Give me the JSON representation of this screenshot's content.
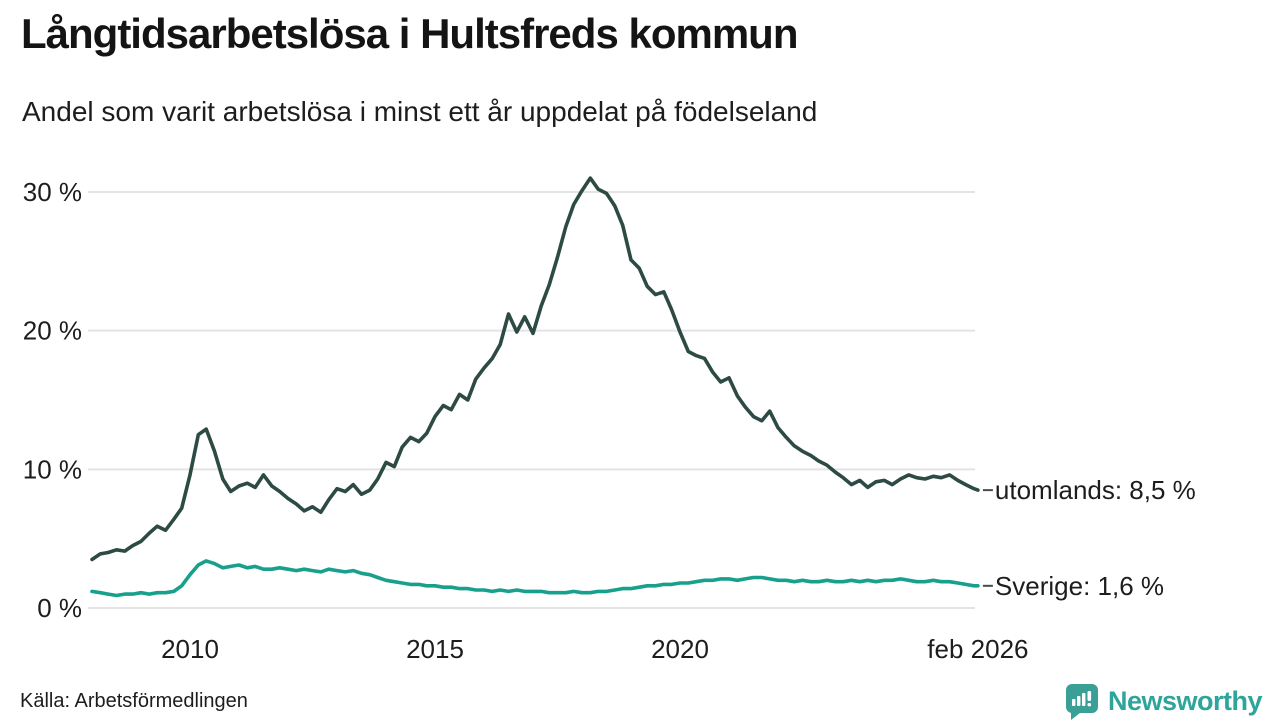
{
  "header": {
    "title": "Långtidsarbetslösa i Hultsfreds kommun",
    "subtitle": "Andel som varit arbetslösa i minst ett år uppdelat på födelseland"
  },
  "footer": {
    "source": "Källa: Arbetsförmedlingen",
    "brand": "Newsworthy",
    "brand_icon": "newsworthy-speech-bubble-bar-chart-icon",
    "brand_color": "#2ea59b"
  },
  "chart_data": {
    "type": "line",
    "title": "Långtidsarbetslösa i Hultsfreds kommun",
    "subtitle": "Andel som varit arbetslösa i minst ett år uppdelat på födelseland",
    "xlabel": "",
    "ylabel": "",
    "grid": "horizontal",
    "legend_position": "right-of-line-ends",
    "style": {
      "grid_color": "#e4e4e4",
      "axis_text_color": "#1d1d1d",
      "leader_dash_color": "#4a4a4a",
      "background": "#ffffff"
    },
    "x_axis": {
      "range": [
        2008.0,
        2026.17
      ],
      "ticks": [
        {
          "value": 2010,
          "label": "2010"
        },
        {
          "value": 2015,
          "label": "2015"
        },
        {
          "value": 2020,
          "label": "2020"
        },
        {
          "value": 2026.08,
          "label": "feb 2026"
        }
      ]
    },
    "y_axis": {
      "range": [
        0,
        32
      ],
      "unit": "%",
      "ticks": [
        {
          "value": 0,
          "label": "0 %"
        },
        {
          "value": 10,
          "label": "10 %"
        },
        {
          "value": 20,
          "label": "20 %"
        },
        {
          "value": 30,
          "label": "30 %"
        }
      ]
    },
    "series": [
      {
        "name": "utomlands",
        "color": "#2d4b44",
        "end_label": "utomlands: 8,5 %",
        "last_value_label": "8,5 %",
        "points": [
          [
            2008.0,
            3.5
          ],
          [
            2008.17,
            3.9
          ],
          [
            2008.33,
            4.0
          ],
          [
            2008.5,
            4.2
          ],
          [
            2008.67,
            4.1
          ],
          [
            2008.83,
            4.5
          ],
          [
            2009.0,
            4.8
          ],
          [
            2009.17,
            5.4
          ],
          [
            2009.33,
            5.9
          ],
          [
            2009.5,
            5.6
          ],
          [
            2009.67,
            6.4
          ],
          [
            2009.83,
            7.2
          ],
          [
            2010.0,
            9.6
          ],
          [
            2010.17,
            12.5
          ],
          [
            2010.33,
            12.9
          ],
          [
            2010.5,
            11.3
          ],
          [
            2010.67,
            9.3
          ],
          [
            2010.83,
            8.4
          ],
          [
            2011.0,
            8.8
          ],
          [
            2011.17,
            9.0
          ],
          [
            2011.33,
            8.7
          ],
          [
            2011.5,
            9.6
          ],
          [
            2011.67,
            8.8
          ],
          [
            2011.83,
            8.4
          ],
          [
            2012.0,
            7.9
          ],
          [
            2012.17,
            7.5
          ],
          [
            2012.33,
            7.0
          ],
          [
            2012.5,
            7.3
          ],
          [
            2012.67,
            6.9
          ],
          [
            2012.83,
            7.8
          ],
          [
            2013.0,
            8.6
          ],
          [
            2013.17,
            8.4
          ],
          [
            2013.33,
            8.9
          ],
          [
            2013.5,
            8.2
          ],
          [
            2013.67,
            8.5
          ],
          [
            2013.83,
            9.3
          ],
          [
            2014.0,
            10.5
          ],
          [
            2014.17,
            10.2
          ],
          [
            2014.33,
            11.6
          ],
          [
            2014.5,
            12.3
          ],
          [
            2014.67,
            12.0
          ],
          [
            2014.83,
            12.6
          ],
          [
            2015.0,
            13.8
          ],
          [
            2015.17,
            14.6
          ],
          [
            2015.33,
            14.3
          ],
          [
            2015.5,
            15.4
          ],
          [
            2015.67,
            15.0
          ],
          [
            2015.83,
            16.5
          ],
          [
            2016.0,
            17.3
          ],
          [
            2016.17,
            18.0
          ],
          [
            2016.33,
            19.0
          ],
          [
            2016.5,
            21.2
          ],
          [
            2016.67,
            19.9
          ],
          [
            2016.83,
            21.0
          ],
          [
            2017.0,
            19.8
          ],
          [
            2017.17,
            21.8
          ],
          [
            2017.33,
            23.3
          ],
          [
            2017.5,
            25.3
          ],
          [
            2017.67,
            27.5
          ],
          [
            2017.83,
            29.1
          ],
          [
            2018.0,
            30.1
          ],
          [
            2018.17,
            31.0
          ],
          [
            2018.33,
            30.2
          ],
          [
            2018.5,
            29.9
          ],
          [
            2018.67,
            29.0
          ],
          [
            2018.83,
            27.6
          ],
          [
            2019.0,
            25.1
          ],
          [
            2019.17,
            24.5
          ],
          [
            2019.33,
            23.2
          ],
          [
            2019.5,
            22.6
          ],
          [
            2019.67,
            22.8
          ],
          [
            2019.83,
            21.5
          ],
          [
            2020.0,
            19.9
          ],
          [
            2020.17,
            18.5
          ],
          [
            2020.33,
            18.2
          ],
          [
            2020.5,
            18.0
          ],
          [
            2020.67,
            17.0
          ],
          [
            2020.83,
            16.3
          ],
          [
            2021.0,
            16.6
          ],
          [
            2021.17,
            15.3
          ],
          [
            2021.33,
            14.5
          ],
          [
            2021.5,
            13.8
          ],
          [
            2021.67,
            13.5
          ],
          [
            2021.83,
            14.2
          ],
          [
            2022.0,
            13.0
          ],
          [
            2022.17,
            12.3
          ],
          [
            2022.33,
            11.7
          ],
          [
            2022.5,
            11.3
          ],
          [
            2022.67,
            11.0
          ],
          [
            2022.83,
            10.6
          ],
          [
            2023.0,
            10.3
          ],
          [
            2023.17,
            9.8
          ],
          [
            2023.33,
            9.4
          ],
          [
            2023.5,
            8.9
          ],
          [
            2023.67,
            9.2
          ],
          [
            2023.83,
            8.7
          ],
          [
            2024.0,
            9.1
          ],
          [
            2024.17,
            9.2
          ],
          [
            2024.33,
            8.9
          ],
          [
            2024.5,
            9.3
          ],
          [
            2024.67,
            9.6
          ],
          [
            2024.83,
            9.4
          ],
          [
            2025.0,
            9.3
          ],
          [
            2025.17,
            9.5
          ],
          [
            2025.33,
            9.4
          ],
          [
            2025.5,
            9.6
          ],
          [
            2025.67,
            9.2
          ],
          [
            2025.83,
            8.9
          ],
          [
            2026.0,
            8.6
          ],
          [
            2026.08,
            8.5
          ]
        ]
      },
      {
        "name": "Sverige",
        "color": "#18a08d",
        "end_label": "Sverige: 1,6 %",
        "last_value_label": "1,6 %",
        "points": [
          [
            2008.0,
            1.2
          ],
          [
            2008.17,
            1.1
          ],
          [
            2008.33,
            1.0
          ],
          [
            2008.5,
            0.9
          ],
          [
            2008.67,
            1.0
          ],
          [
            2008.83,
            1.0
          ],
          [
            2009.0,
            1.1
          ],
          [
            2009.17,
            1.0
          ],
          [
            2009.33,
            1.1
          ],
          [
            2009.5,
            1.1
          ],
          [
            2009.67,
            1.2
          ],
          [
            2009.83,
            1.6
          ],
          [
            2010.0,
            2.4
          ],
          [
            2010.17,
            3.1
          ],
          [
            2010.33,
            3.4
          ],
          [
            2010.5,
            3.2
          ],
          [
            2010.67,
            2.9
          ],
          [
            2010.83,
            3.0
          ],
          [
            2011.0,
            3.1
          ],
          [
            2011.17,
            2.9
          ],
          [
            2011.33,
            3.0
          ],
          [
            2011.5,
            2.8
          ],
          [
            2011.67,
            2.8
          ],
          [
            2011.83,
            2.9
          ],
          [
            2012.0,
            2.8
          ],
          [
            2012.17,
            2.7
          ],
          [
            2012.33,
            2.8
          ],
          [
            2012.5,
            2.7
          ],
          [
            2012.67,
            2.6
          ],
          [
            2012.83,
            2.8
          ],
          [
            2013.0,
            2.7
          ],
          [
            2013.17,
            2.6
          ],
          [
            2013.33,
            2.7
          ],
          [
            2013.5,
            2.5
          ],
          [
            2013.67,
            2.4
          ],
          [
            2013.83,
            2.2
          ],
          [
            2014.0,
            2.0
          ],
          [
            2014.17,
            1.9
          ],
          [
            2014.33,
            1.8
          ],
          [
            2014.5,
            1.7
          ],
          [
            2014.67,
            1.7
          ],
          [
            2014.83,
            1.6
          ],
          [
            2015.0,
            1.6
          ],
          [
            2015.17,
            1.5
          ],
          [
            2015.33,
            1.5
          ],
          [
            2015.5,
            1.4
          ],
          [
            2015.67,
            1.4
          ],
          [
            2015.83,
            1.3
          ],
          [
            2016.0,
            1.3
          ],
          [
            2016.17,
            1.2
          ],
          [
            2016.33,
            1.3
          ],
          [
            2016.5,
            1.2
          ],
          [
            2016.67,
            1.3
          ],
          [
            2016.83,
            1.2
          ],
          [
            2017.0,
            1.2
          ],
          [
            2017.17,
            1.2
          ],
          [
            2017.33,
            1.1
          ],
          [
            2017.5,
            1.1
          ],
          [
            2017.67,
            1.1
          ],
          [
            2017.83,
            1.2
          ],
          [
            2018.0,
            1.1
          ],
          [
            2018.17,
            1.1
          ],
          [
            2018.33,
            1.2
          ],
          [
            2018.5,
            1.2
          ],
          [
            2018.67,
            1.3
          ],
          [
            2018.83,
            1.4
          ],
          [
            2019.0,
            1.4
          ],
          [
            2019.17,
            1.5
          ],
          [
            2019.33,
            1.6
          ],
          [
            2019.5,
            1.6
          ],
          [
            2019.67,
            1.7
          ],
          [
            2019.83,
            1.7
          ],
          [
            2020.0,
            1.8
          ],
          [
            2020.17,
            1.8
          ],
          [
            2020.33,
            1.9
          ],
          [
            2020.5,
            2.0
          ],
          [
            2020.67,
            2.0
          ],
          [
            2020.83,
            2.1
          ],
          [
            2021.0,
            2.1
          ],
          [
            2021.17,
            2.0
          ],
          [
            2021.33,
            2.1
          ],
          [
            2021.5,
            2.2
          ],
          [
            2021.67,
            2.2
          ],
          [
            2021.83,
            2.1
          ],
          [
            2022.0,
            2.0
          ],
          [
            2022.17,
            2.0
          ],
          [
            2022.33,
            1.9
          ],
          [
            2022.5,
            2.0
          ],
          [
            2022.67,
            1.9
          ],
          [
            2022.83,
            1.9
          ],
          [
            2023.0,
            2.0
          ],
          [
            2023.17,
            1.9
          ],
          [
            2023.33,
            1.9
          ],
          [
            2023.5,
            2.0
          ],
          [
            2023.67,
            1.9
          ],
          [
            2023.83,
            2.0
          ],
          [
            2024.0,
            1.9
          ],
          [
            2024.17,
            2.0
          ],
          [
            2024.33,
            2.0
          ],
          [
            2024.5,
            2.1
          ],
          [
            2024.67,
            2.0
          ],
          [
            2024.83,
            1.9
          ],
          [
            2025.0,
            1.9
          ],
          [
            2025.17,
            2.0
          ],
          [
            2025.33,
            1.9
          ],
          [
            2025.5,
            1.9
          ],
          [
            2025.67,
            1.8
          ],
          [
            2025.83,
            1.7
          ],
          [
            2026.0,
            1.6
          ],
          [
            2026.08,
            1.6
          ]
        ]
      }
    ]
  }
}
